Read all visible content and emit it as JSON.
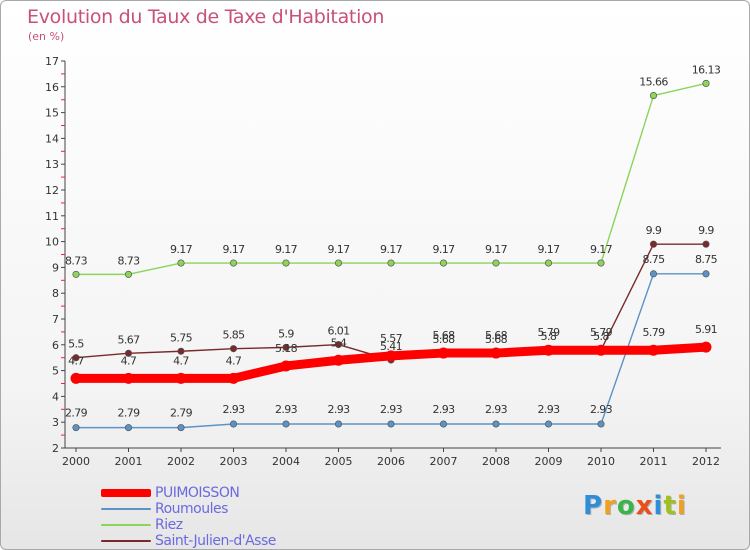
{
  "title": "Evolution du Taux de Taxe d'Habitation",
  "subtitle": "(en %)",
  "logo": {
    "text": "Proxiti",
    "letters": [
      "P",
      "r",
      "o",
      "x",
      "i",
      "t",
      "i"
    ],
    "colors": [
      "#2e8fd8",
      "#f0a020",
      "#39b54a",
      "#e94e1b",
      "#2e8fd8",
      "#a0c020",
      "#f0a020"
    ]
  },
  "chart_data": {
    "type": "line",
    "title": "Evolution du Taux de Taxe d'Habitation",
    "ylabel": "(en %)",
    "xlabel": "",
    "x": [
      "2000",
      "2001",
      "2002",
      "2003",
      "2004",
      "2005",
      "2006",
      "2007",
      "2008",
      "2009",
      "2010",
      "2011",
      "2012"
    ],
    "ylim": [
      2,
      17
    ],
    "yticks": [
      "2",
      "3",
      "4",
      "5",
      "6",
      "7",
      "8",
      "9",
      "10",
      "11",
      "12",
      "13",
      "14",
      "15",
      "16",
      "17"
    ],
    "grid": false,
    "legend": "bottom-left",
    "series": [
      {
        "name": "PUIMOISSON",
        "color": "#ff0000",
        "values": [
          4.7,
          4.7,
          4.7,
          4.7,
          5.18,
          5.4,
          5.57,
          5.68,
          5.68,
          5.79,
          5.79,
          5.79,
          5.91
        ],
        "labels": [
          "4.7",
          "4.7",
          "4.7",
          "4.7",
          "5.18",
          "5.4",
          "5.57",
          "5.68",
          "5.68",
          "5.79",
          "5.79",
          "5.79",
          "5.91"
        ]
      },
      {
        "name": "Roumoules",
        "color": "#5b93c6",
        "values": [
          2.79,
          2.79,
          2.79,
          2.93,
          2.93,
          2.93,
          2.93,
          2.93,
          2.93,
          2.93,
          2.93,
          8.75,
          8.75
        ],
        "labels": [
          "2.79",
          "2.79",
          "2.79",
          "2.93",
          "2.93",
          "2.93",
          "2.93",
          "2.93",
          "2.93",
          "2.93",
          "2.93",
          "8.75",
          "8.75"
        ]
      },
      {
        "name": "Riez",
        "color": "#8cd45a",
        "values": [
          8.73,
          8.73,
          9.17,
          9.17,
          9.17,
          9.17,
          9.17,
          9.17,
          9.17,
          9.17,
          9.17,
          15.66,
          16.13
        ],
        "labels": [
          "8.73",
          "8.73",
          "9.17",
          "9.17",
          "9.17",
          "9.17",
          "9.17",
          "9.17",
          "9.17",
          "9.17",
          "9.17",
          "15.66",
          "16.13"
        ]
      },
      {
        "name": "Saint-Julien-d'Asse",
        "color": "#7a2a2a",
        "values": [
          5.5,
          5.67,
          5.75,
          5.85,
          5.9,
          6.01,
          5.41,
          5.68,
          5.68,
          5.8,
          5.8,
          9.9,
          9.9
        ],
        "labels": [
          "5.5",
          "5.67",
          "5.75",
          "5.85",
          "5.9",
          "6.01",
          "5.41",
          "5.68",
          "5.68",
          "5.8",
          "5.8",
          "9.9",
          "9.9"
        ]
      }
    ]
  }
}
